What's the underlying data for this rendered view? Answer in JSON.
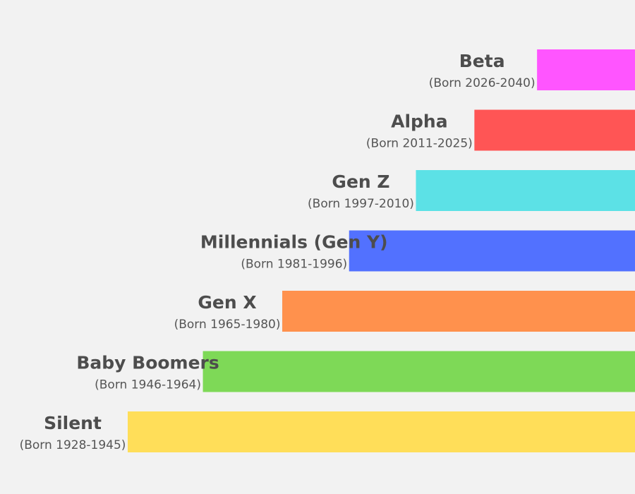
{
  "chart_data": {
    "type": "bar",
    "orientation": "horizontal",
    "categories": [
      "Beta",
      "Alpha",
      "Gen Z",
      "Millennials (Gen Y)",
      "Gen X",
      "Baby Boomers",
      "Silent"
    ],
    "subtitles": [
      "(Born 2026-2040)",
      "(Born 2011-2025)",
      "(Born 1997-2010)",
      "(Born 1981-1996)",
      "(Born 1965-1980)",
      "(Born 1946-1964)",
      "(Born 1928-1945)"
    ],
    "series": [
      {
        "values": [
          2026,
          2011,
          1997,
          1981,
          1965,
          1946,
          1928
        ],
        "ends": [
          2040,
          2025,
          2010,
          1996,
          1980,
          1964,
          1945
        ]
      }
    ],
    "colors": [
      "#ff55ff",
      "#ff5555",
      "#5ce1e6",
      "#5271ff",
      "#ff914d",
      "#7ed957",
      "#ffde59"
    ],
    "title": "",
    "xlabel": "",
    "ylabel": "",
    "grid": false,
    "legend": "none"
  }
}
